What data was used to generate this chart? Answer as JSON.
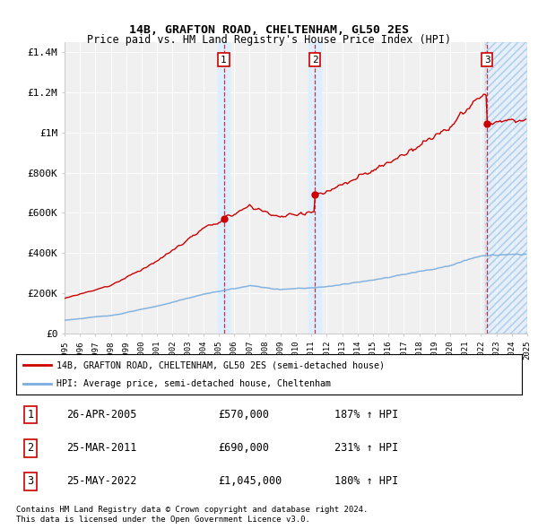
{
  "title": "14B, GRAFTON ROAD, CHELTENHAM, GL50 2ES",
  "subtitle": "Price paid vs. HM Land Registry's House Price Index (HPI)",
  "xmin": 1995,
  "xmax": 2025,
  "ymin": 0,
  "ymax": 1450000,
  "yticks": [
    0,
    200000,
    400000,
    600000,
    800000,
    1000000,
    1200000,
    1400000
  ],
  "ytick_labels": [
    "£0",
    "£200K",
    "£400K",
    "£600K",
    "£800K",
    "£1M",
    "£1.2M",
    "£1.4M"
  ],
  "hpi_color": "#7aadde",
  "price_color": "#cc0000",
  "sale1_date": "26-APR-2005",
  "sale1_price": 570000,
  "sale1_hpi_pct": "187%",
  "sale2_date": "25-MAR-2011",
  "sale2_price": 690000,
  "sale2_hpi_pct": "231%",
  "sale3_date": "25-MAY-2022",
  "sale3_price": 1045000,
  "sale3_hpi_pct": "180%",
  "sale1_x": 2005.32,
  "sale2_x": 2011.24,
  "sale3_x": 2022.4,
  "legend_line1": "14B, GRAFTON ROAD, CHELTENHAM, GL50 2ES (semi-detached house)",
  "legend_line2": "HPI: Average price, semi-detached house, Cheltenham",
  "footer1": "Contains HM Land Registry data © Crown copyright and database right 2024.",
  "footer2": "This data is licensed under the Open Government Licence v3.0.",
  "bg_color": "#ffffff",
  "plot_bg_color": "#f0f0f0",
  "shade_blue": "#ddeeff",
  "shade_red_hatch": "#ffeeee"
}
